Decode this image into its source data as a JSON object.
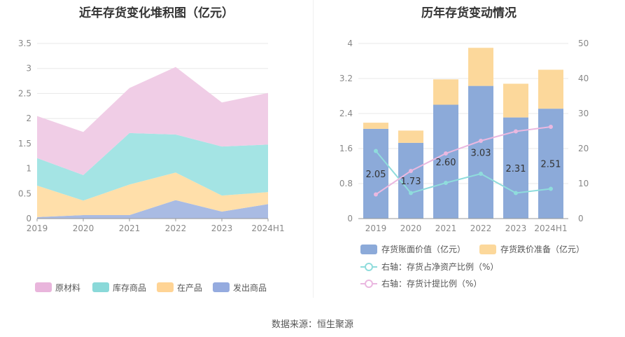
{
  "source_text": "数据来源：恒生聚源",
  "chart_data": [
    {
      "type": "area",
      "stacked": true,
      "title": "近年存货变化堆积图（亿元）",
      "categories": [
        "2019",
        "2020",
        "2021",
        "2022",
        "2023",
        "2024H1"
      ],
      "ylim": [
        0,
        3.5
      ],
      "y_ticks": [
        "0",
        "0.5",
        "1",
        "1.5",
        "2",
        "2.5",
        "3",
        "3.5"
      ],
      "grid": true,
      "legend_position": "bottom",
      "series": [
        {
          "name": "发出商品",
          "color": "#a9bbe3",
          "values": [
            0.03,
            0.07,
            0.07,
            0.37,
            0.14,
            0.29
          ]
        },
        {
          "name": "在产品",
          "color": "#ffdfaa",
          "values": [
            0.63,
            0.29,
            0.61,
            0.55,
            0.32,
            0.24
          ]
        },
        {
          "name": "库存商品",
          "color": "#a4e4e4",
          "values": [
            0.55,
            0.51,
            1.03,
            0.76,
            0.98,
            0.95
          ]
        },
        {
          "name": "原材料",
          "color": "#f0cde6",
          "values": [
            0.84,
            0.86,
            0.9,
            1.35,
            0.88,
            1.03
          ]
        }
      ],
      "legend_order": [
        "原材料",
        "库存商品",
        "在产品",
        "发出商品"
      ],
      "legend_colors": {
        "原材料": "#e9b5dc",
        "库存商品": "#8ad9d9",
        "在产品": "#ffd495",
        "发出商品": "#95abdf"
      }
    },
    {
      "type": "bar",
      "stacked": true,
      "title": "历年存货变动情况",
      "categories": [
        "2019",
        "2020",
        "2021",
        "2022",
        "2023",
        "2024H1"
      ],
      "ylim_left": [
        0,
        4
      ],
      "ylim_right": [
        0,
        50
      ],
      "y_ticks_left": [
        "0",
        "0.8",
        "1.6",
        "2.4",
        "3.2",
        "4"
      ],
      "y_ticks_right": [
        "0",
        "10",
        "20",
        "30",
        "40",
        "50"
      ],
      "grid": true,
      "legend_position": "bottom",
      "bars": [
        {
          "name": "存货账面价值（亿元）",
          "color": "#8caad9",
          "values": [
            2.05,
            1.73,
            2.6,
            3.03,
            2.31,
            2.51
          ],
          "labels": [
            "2.05",
            "1.73",
            "2.60",
            "3.03",
            "2.31",
            "2.51"
          ]
        },
        {
          "name": "存货跌价准备（亿元）",
          "color": "#fcd89b",
          "values": [
            0.14,
            0.28,
            0.58,
            0.87,
            0.77,
            0.89
          ]
        }
      ],
      "lines": [
        {
          "name": "右轴：存货占净资产比例（%）",
          "color": "#8fdcdc",
          "axis": "right",
          "values": [
            19.3,
            7.3,
            10.2,
            12.8,
            7.3,
            8.5
          ]
        },
        {
          "name": "右轴：存货计提比例（%）",
          "color": "#eab8e0",
          "axis": "right",
          "values": [
            6.9,
            13.6,
            18.6,
            22.2,
            24.9,
            26.2
          ]
        }
      ]
    }
  ]
}
